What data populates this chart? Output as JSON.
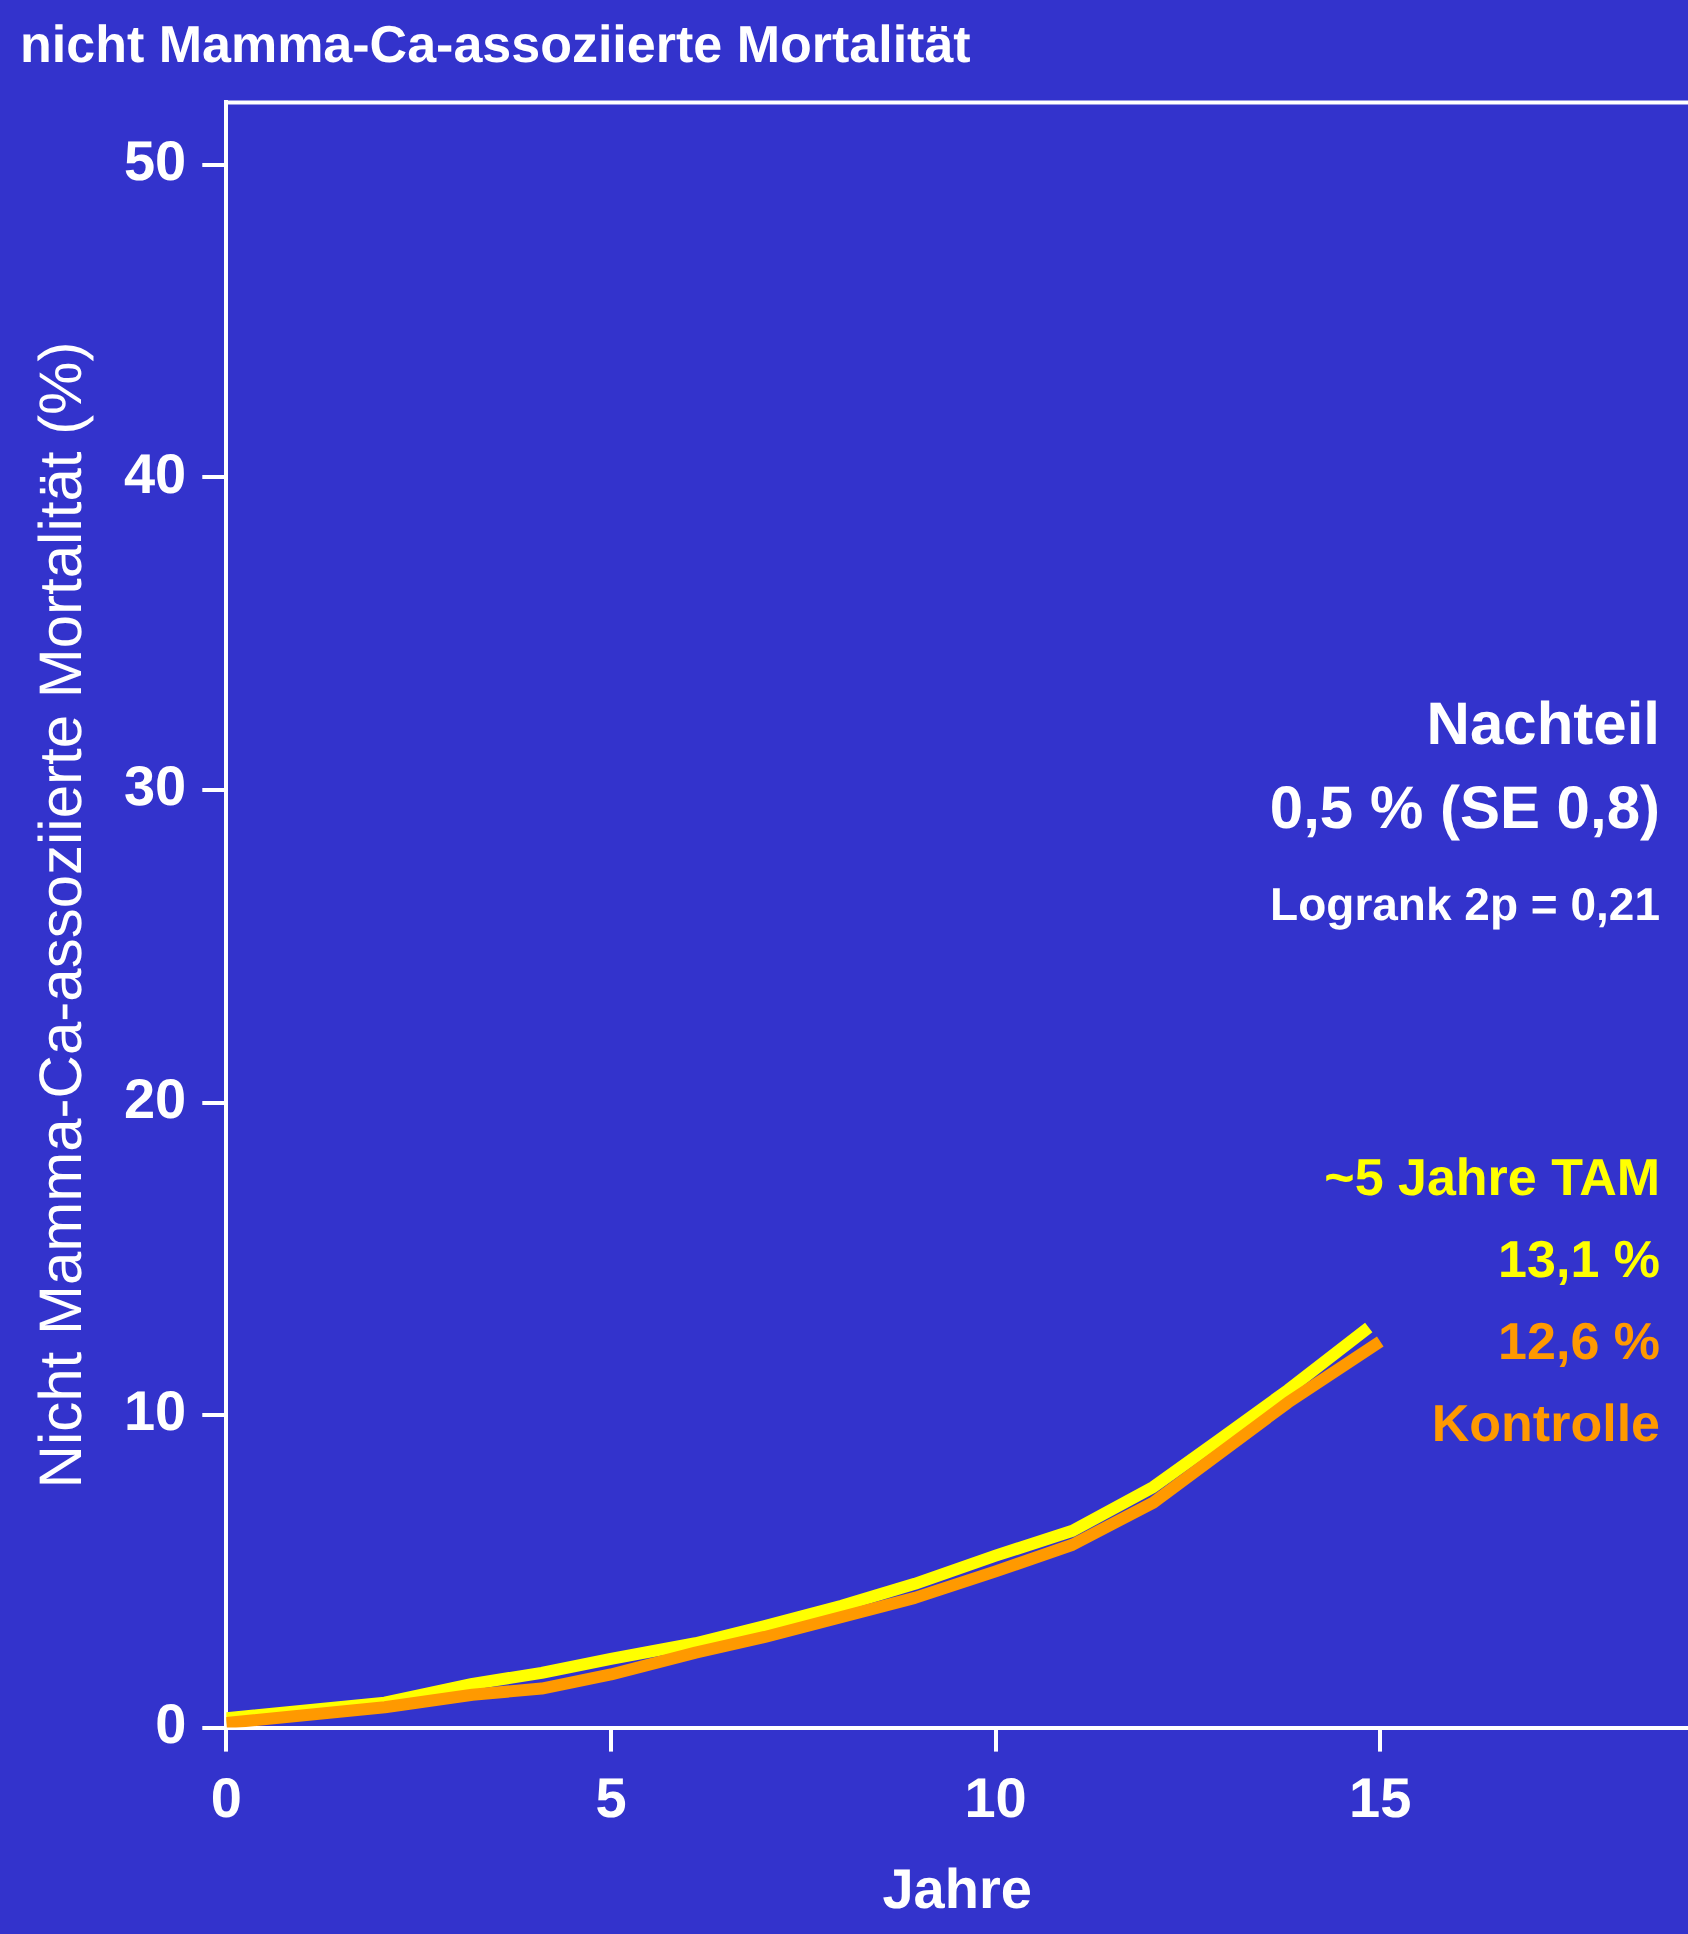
{
  "chart_data": {
    "type": "line",
    "title": "nicht Mamma-Ca-assoziierte Mortalität",
    "xlabel": "Jahre",
    "ylabel": "Nicht Mamma-Ca-assoziierte Mortalität (%)",
    "xlim": [
      0,
      19
    ],
    "xticks": [
      0,
      5,
      10,
      15
    ],
    "ylim": [
      0,
      52
    ],
    "yticks": [
      0,
      10,
      20,
      30,
      40,
      50
    ],
    "grid": false,
    "legend": false,
    "marker": "none",
    "line_style": "solid",
    "series": [
      {
        "name": "~5 Jahre TAM",
        "color": "#ffff00",
        "x": [
          0,
          2.06,
          3.2,
          4.1,
          5,
          6.1,
          7,
          8,
          8.95,
          10,
          11,
          12.05,
          12.9,
          13.8,
          14.85
        ],
        "values": [
          0.3,
          0.8,
          1.4,
          1.75,
          2.2,
          2.7,
          3.25,
          3.9,
          4.6,
          5.5,
          6.3,
          7.7,
          9.2,
          10.8,
          12.8
        ]
      },
      {
        "name": "Kontrolle",
        "color": "#ff9900",
        "x": [
          0,
          2.06,
          3.2,
          4.1,
          5,
          6.1,
          7,
          8.95,
          10,
          11,
          12.05,
          13.8,
          15
        ],
        "values": [
          0.15,
          0.65,
          1.05,
          1.25,
          1.7,
          2.4,
          2.9,
          4.15,
          5,
          5.85,
          7.2,
          10.4,
          12.35
        ]
      }
    ],
    "annotations": [
      "Nachteil",
      "0,5 % (SE 0,8)",
      "Logrank 2p = 0,21",
      "13,1 %",
      "12,6 %"
    ]
  }
}
